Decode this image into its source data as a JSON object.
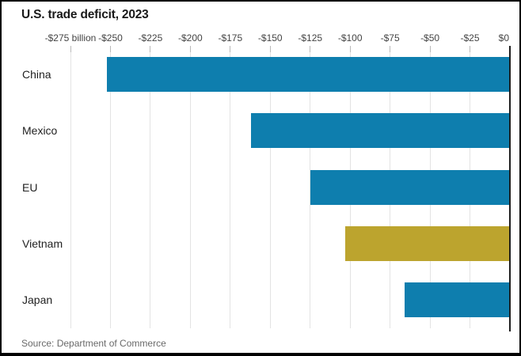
{
  "title": "U.S. trade deficit, 2023",
  "source": "Source: Department of Commerce",
  "colors": {
    "bar_default": "#0e7eae",
    "bar_highlight": "#bca42e",
    "gridline": "#e3e3e3",
    "tick_mark": "#b9b9b9",
    "zero_axis": "#1f1f1f",
    "title_text": "#1a1a1a",
    "category_text": "#222222",
    "tick_label_text": "#444444",
    "source_text": "#696969"
  },
  "chart_data": {
    "type": "bar",
    "orientation": "horizontal",
    "title": "U.S. trade deficit, 2023",
    "categories": [
      "China",
      "Mexico",
      "EU",
      "Vietnam",
      "Japan"
    ],
    "values": [
      -252,
      -162,
      -125,
      -103,
      -66
    ],
    "unit": "billion U.S. dollars",
    "bar_colors": [
      "#0e7eae",
      "#0e7eae",
      "#0e7eae",
      "#bca42e",
      "#0e7eae"
    ],
    "highlighted_category": "Vietnam",
    "xlim": [
      -275,
      0
    ],
    "x_tick_values": [
      -275,
      -250,
      -225,
      -200,
      -175,
      -150,
      -125,
      -100,
      -75,
      -50,
      -25,
      0
    ],
    "x_tick_labels": [
      "-$275 billion",
      "-$250",
      "-$225",
      "-$200",
      "-$175",
      "-$150",
      "-$125",
      "-$100",
      "-$75",
      "-$50",
      "-$25",
      "$0"
    ],
    "grid": true,
    "legend": false,
    "source": "Source: Department of Commerce"
  }
}
